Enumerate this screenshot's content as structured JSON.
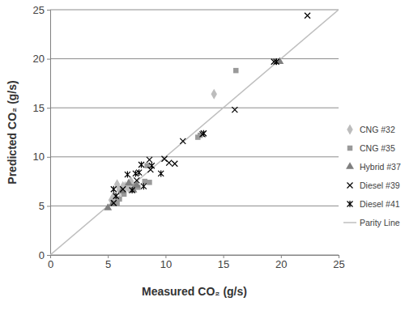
{
  "chart_data": {
    "type": "scatter",
    "x_label": "Measured CO₂ (g/s)",
    "y_label": "Predicted CO₂ (g/s)",
    "xlim": [
      0,
      25
    ],
    "ylim": [
      0,
      25
    ],
    "xticks": [
      0,
      5,
      10,
      15,
      20,
      25
    ],
    "yticks": [
      0,
      5,
      10,
      15,
      20,
      25
    ],
    "grid": true,
    "legend": "right",
    "series": [
      {
        "name": "CNG #32",
        "color": "#bdbdbd",
        "marker": "diamond",
        "x": [
          14.2,
          5.3,
          5.6,
          6.0,
          6.3,
          5.8,
          6.5,
          5.5,
          7.0,
          6.8
        ],
        "values": [
          16.4,
          5.6,
          5.9,
          6.6,
          7.0,
          7.2,
          7.0,
          6.0,
          7.5,
          6.8
        ]
      },
      {
        "name": "CNG #35",
        "color": "#9a9a9a",
        "marker": "square",
        "x": [
          16.1,
          12.8,
          13.0,
          8.4,
          8.2,
          8.6,
          5.8,
          6.0,
          6.4,
          7.3,
          7.6
        ],
        "values": [
          18.8,
          12.0,
          12.2,
          9.1,
          7.5,
          7.4,
          5.3,
          5.7,
          6.2,
          7.0,
          6.9
        ]
      },
      {
        "name": "Hybrid #37",
        "color": "#7f7f7f",
        "marker": "triangle",
        "x": [
          19.9,
          5.0,
          5.4,
          6.2,
          6.8,
          7.2,
          7.5
        ],
        "values": [
          19.7,
          4.8,
          5.2,
          6.5,
          7.3,
          6.6,
          7.1
        ]
      },
      {
        "name": "Diesel #39",
        "color": "#000000",
        "marker": "x",
        "x": [
          22.3,
          19.4,
          16.0,
          11.5,
          13.2,
          9.9,
          10.3,
          10.8,
          8.6,
          8.7,
          7.5,
          6.3,
          5.5
        ],
        "values": [
          24.4,
          19.7,
          14.8,
          11.6,
          12.3,
          9.8,
          9.4,
          9.3,
          9.7,
          8.7,
          7.6,
          6.7,
          5.3
        ]
      },
      {
        "name": "Diesel #41",
        "color": "#000000",
        "marker": "asterisk",
        "x": [
          19.6,
          13.3,
          9.6,
          8.8,
          7.9,
          7.4,
          7.7,
          8.1,
          6.7,
          7.1,
          5.5,
          5.7
        ],
        "values": [
          19.7,
          12.4,
          8.3,
          9.1,
          9.2,
          8.3,
          8.4,
          7.0,
          8.2,
          6.6,
          6.7,
          6.0
        ]
      },
      {
        "name": "Parity Line",
        "color": "#bfbfbf",
        "type": "line",
        "line_style": "solid",
        "x": [
          0,
          25
        ],
        "values": [
          0,
          25
        ]
      }
    ]
  }
}
